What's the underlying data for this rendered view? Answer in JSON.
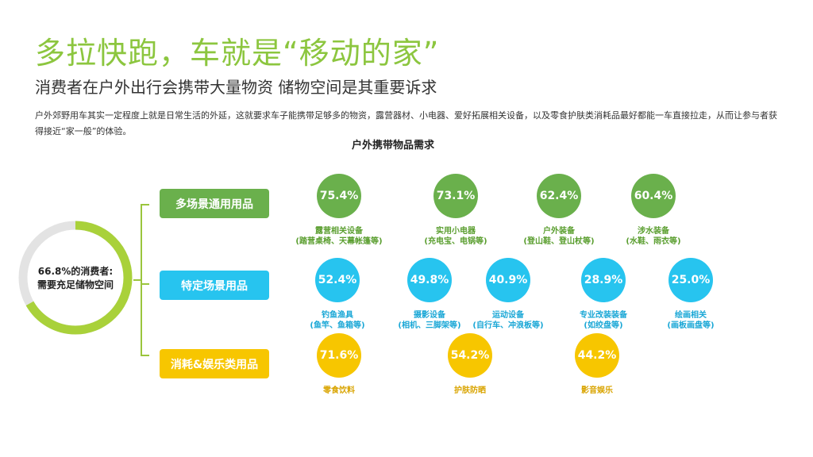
{
  "header": {
    "title": "多拉快跑，车就是“移动的家”",
    "subtitle": "消费者在户外出行会携带大量物资 储物空间是其重要诉求",
    "description": "户外郊野用车其实一定程度上就是日常生活的外延，这就要求车子能携带足够多的物资，露营器材、小电器、爱好拓展相关设备，以及零食护肤类消耗品最好都能一车直接拉走，从而让参与者获得接近“家一般”的体验。"
  },
  "colors": {
    "green": "#6ab04c",
    "blue": "#27c4ef",
    "yellow": "#f7c600",
    "ring": "#a9d13a",
    "ring_track": "#e3e3e3",
    "bracket": "#9bc53d"
  },
  "chart_data": {
    "type": "bubble",
    "title": "户外携带物品需求",
    "summary": {
      "value": 66.8,
      "text_line1": "66.8%的消费者:",
      "text_line2": "需要充足储物空间"
    },
    "groups": [
      {
        "name": "多场景通用用品",
        "color": "green",
        "items": [
          {
            "value": "75.4%",
            "label": "露营相关设备",
            "detail": "(踏营桌椅、天幕帐篷等)"
          },
          {
            "value": "73.1%",
            "label": "实用小电器",
            "detail": "(充电宝、电锅等)"
          },
          {
            "value": "62.4%",
            "label": "户外装备",
            "detail": "(登山鞋、登山杖等)"
          },
          {
            "value": "60.4%",
            "label": "涉水装备",
            "detail": "(水鞋、雨衣等)"
          }
        ]
      },
      {
        "name": "特定场景用品",
        "color": "blue",
        "items": [
          {
            "value": "52.4%",
            "label": "钓鱼渔具",
            "detail": "(鱼竿、鱼箱等)"
          },
          {
            "value": "49.8%",
            "label": "摄影设备",
            "detail": "(相机、三脚架等)"
          },
          {
            "value": "40.9%",
            "label": "运动设备",
            "detail": "(自行车、冲浪板等)"
          },
          {
            "value": "28.9%",
            "label": "专业改装装备",
            "detail": "(如绞盘等)"
          },
          {
            "value": "25.0%",
            "label": "绘画相关",
            "detail": "(画板画盘等)"
          }
        ]
      },
      {
        "name": "消耗&娱乐类用品",
        "color": "yellow",
        "items": [
          {
            "value": "71.6%",
            "label": "零食饮料",
            "detail": ""
          },
          {
            "value": "54.2%",
            "label": "护肤防晒",
            "detail": ""
          },
          {
            "value": "44.2%",
            "label": "影音娱乐",
            "detail": ""
          }
        ]
      }
    ]
  }
}
